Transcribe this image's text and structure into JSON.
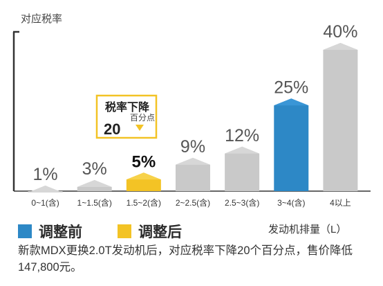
{
  "chart_data": {
    "type": "bar",
    "ylabel": "对应税率",
    "xlabel": "发动机排量（L）",
    "categories": [
      "0~1(含)",
      "1~1.5(含)",
      "1.5~2(含)",
      "2~2.5(含)",
      "2.5~3(含)",
      "3~4(含)",
      "4以上"
    ],
    "values": [
      1,
      3,
      5,
      9,
      12,
      25,
      40
    ],
    "value_labels": [
      "1%",
      "3%",
      "5%",
      "9%",
      "12%",
      "25%",
      "40%"
    ],
    "ylim": [
      0,
      40
    ],
    "grid": false,
    "highlight": {
      "before_index": 5,
      "after_index": 2
    },
    "annotation": {
      "title": "税率下降",
      "value": "20",
      "unit": "百分点",
      "target_index": 2
    }
  },
  "legend": [
    {
      "label": "调整前",
      "color": "#2d88c6"
    },
    {
      "label": "调整后",
      "color": "#f3c325"
    }
  ],
  "colors": {
    "bar_default": "#c9c9c9",
    "bar_cap": "#d7d7d7",
    "axis": "#333333",
    "annotation_border": "#f3c325"
  },
  "footnote": "新款MDX更换2.0T发动机后，对应税率下降20个百分点，售价降低147,800元。"
}
